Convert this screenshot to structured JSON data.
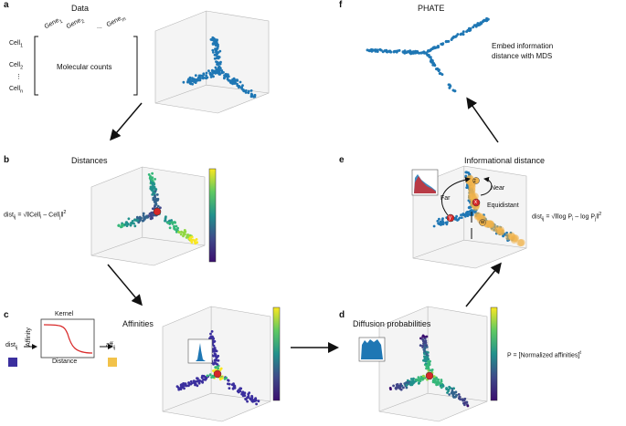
{
  "panels": {
    "a": {
      "letter": "a",
      "title": "Data",
      "cells": [
        "Cell",
        "Cell",
        "Cell"
      ],
      "cell_subs": [
        "1",
        "2",
        "n"
      ],
      "genes": [
        "Gene",
        "Gene",
        "Gene"
      ],
      "gene_subs": [
        "1",
        "2",
        "m"
      ],
      "ellipsis_h": "...",
      "ellipsis_v": "⋮",
      "matrix_label": "Molecular counts"
    },
    "b": {
      "letter": "b",
      "title": "Distances",
      "formula_lhs": "dist",
      "formula_lhs_sub": "ij",
      "formula_rhs": "= √‖Cell",
      "formula_rhs_2": " – Cell",
      "formula_rhs_3": "‖",
      "formula_sub_i": "i",
      "formula_sub_j": "j",
      "formula_exp": "2"
    },
    "c": {
      "letter": "c",
      "title": "Affinities",
      "dist_label": "dist",
      "dist_sub": "ij",
      "kernel_title": "Kernel",
      "kernel_ylabel": "Affinity",
      "kernel_xlabel": "Distance",
      "aff_label": "aff",
      "aff_sub": "ij",
      "dist_color": "#3b2f9e",
      "aff_color": "#f2c24a",
      "kernel_color": "#d92b2b"
    },
    "d": {
      "letter": "d",
      "title": "Diffusion probabilities",
      "formula": "P = [Normalized affinities]",
      "formula_exp": "t"
    },
    "e": {
      "letter": "e",
      "title": "Informational distance",
      "label_far": "Far",
      "label_near": "Near",
      "label_equidistant": "Equidistant",
      "point_x": "x",
      "point_y": "y",
      "point_z": "z",
      "point_w": "w",
      "formula_lhs": "dist",
      "formula_lhs_sub": "ij",
      "formula_rhs": "= √‖log P",
      "formula_mid": " – log P",
      "formula_end": "‖",
      "formula_sub_i": "i",
      "formula_sub_j": "j",
      "formula_exp": "2"
    },
    "f": {
      "letter": "f",
      "title": "PHATE",
      "caption_line1": "Embed information",
      "caption_line2": "distance with MDS"
    }
  },
  "colors": {
    "scatter_blue": "#1f77b4",
    "colorbar_top": "#f9e721",
    "colorbar_mid": "#21918c",
    "colorbar_bottom": "#3b0f70",
    "highlight_red": "#d62728",
    "orange_overlay": "#f0b34a"
  }
}
